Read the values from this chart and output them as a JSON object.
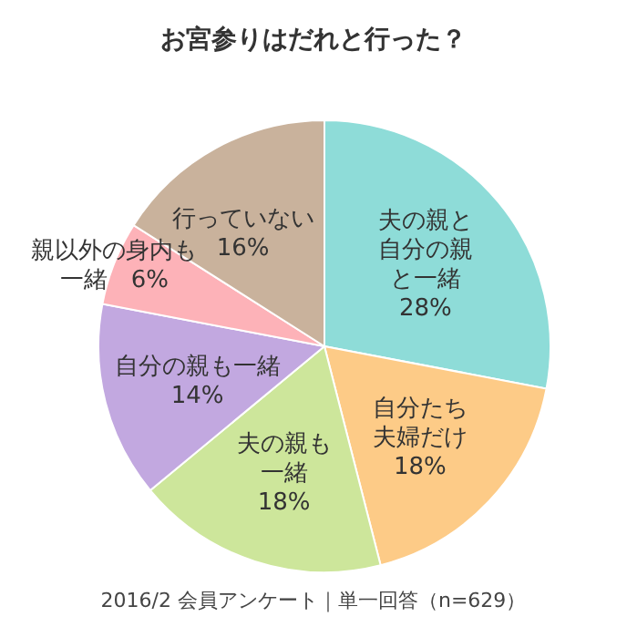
{
  "chart_data": {
    "type": "pie",
    "title": "お宮参りはだれと行った？",
    "categories": [
      "夫の親と自分の親と一緒",
      "自分たち夫婦だけ",
      "夫の親も一緒",
      "自分の親も一緒",
      "親以外の身内も一緒",
      "行っていない"
    ],
    "values": [
      28,
      18,
      18,
      14,
      6,
      16
    ],
    "value_labels": [
      "28%",
      "18%",
      "18%",
      "14%",
      "6%",
      "16%"
    ],
    "colors": [
      "#8edcd8",
      "#fdcb87",
      "#cde69b",
      "#c2a8e0",
      "#fdb2b8",
      "#c9b29c"
    ],
    "annotations": [
      "2016/2 会員アンケート｜単一回答（n=629）"
    ]
  }
}
